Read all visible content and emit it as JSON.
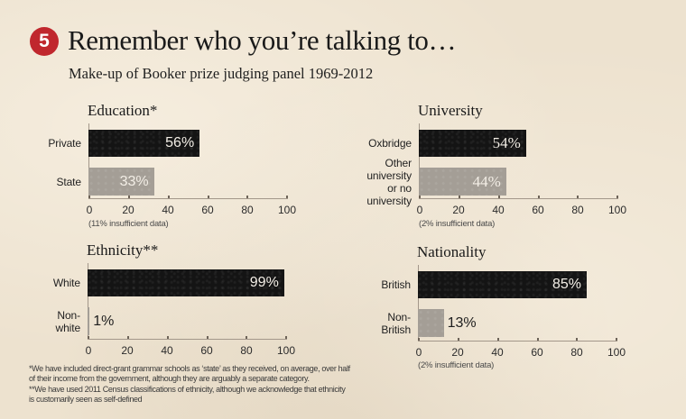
{
  "header": {
    "badge_number": "5",
    "title": "Remember who you’re talking to…",
    "subtitle": "Make-up of Booker prize judging panel 1969-2012"
  },
  "colors": {
    "accent": "#c0272d",
    "background": "#ede2cf",
    "bar_primary": "#141414",
    "bar_secondary": "#a49e96",
    "text": "#1e1e1e"
  },
  "chart_data": [
    {
      "type": "bar",
      "orientation": "horizontal",
      "title": "Education*",
      "categories": [
        "Private",
        "State"
      ],
      "values": [
        56,
        33
      ],
      "value_labels": [
        "56%",
        "33%"
      ],
      "xlabel": "",
      "ylabel": "",
      "xlim": [
        0,
        100
      ],
      "xticks": [
        0,
        20,
        40,
        60,
        80,
        100
      ],
      "grid": false,
      "note": "(11% insufficient data)"
    },
    {
      "type": "bar",
      "orientation": "horizontal",
      "title": "University",
      "categories": [
        "Oxbridge",
        "Other university\nor no university"
      ],
      "values": [
        54,
        44
      ],
      "value_labels": [
        "54%",
        "44%"
      ],
      "xlabel": "",
      "ylabel": "",
      "xlim": [
        0,
        100
      ],
      "xticks": [
        0,
        20,
        40,
        60,
        80,
        100
      ],
      "grid": false,
      "note": "(2% insufficient data)"
    },
    {
      "type": "bar",
      "orientation": "horizontal",
      "title": "Ethnicity**",
      "categories": [
        "White",
        "Non-white"
      ],
      "values": [
        99,
        1
      ],
      "value_labels": [
        "99%",
        "1%"
      ],
      "xlabel": "",
      "ylabel": "",
      "xlim": [
        0,
        100
      ],
      "xticks": [
        0,
        20,
        40,
        60,
        80,
        100
      ],
      "grid": false
    },
    {
      "type": "bar",
      "orientation": "horizontal",
      "title": "Nationality",
      "categories": [
        "British",
        "Non-British"
      ],
      "values": [
        85,
        13
      ],
      "value_labels": [
        "85%",
        "13%"
      ],
      "xlabel": "",
      "ylabel": "",
      "xlim": [
        0,
        100
      ],
      "xticks": [
        0,
        20,
        40,
        60,
        80,
        100
      ],
      "grid": false,
      "note": "(2% insufficient data)"
    }
  ],
  "footnotes": [
    "*We have included direct-grant grammar schools as ‘state’ as they received, on average, over half",
    "of their income from the government, although they are arguably a separate category.",
    "**We have used 2011 Census classifications of ethnicity, although we acknowledge that ethnicity",
    "is customarily seen as self-defined"
  ]
}
